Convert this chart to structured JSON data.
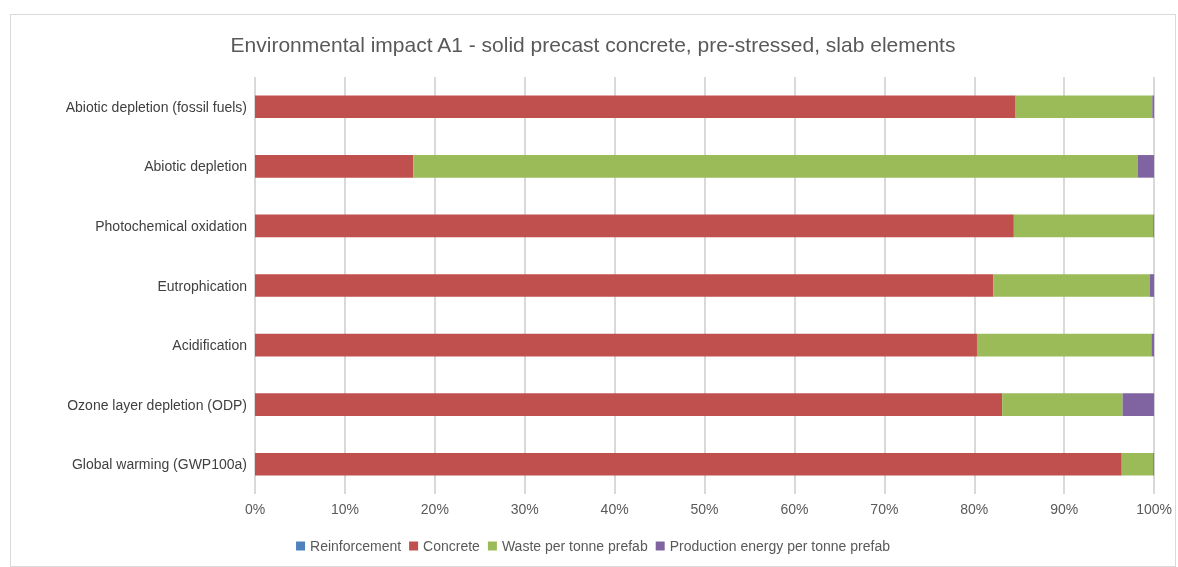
{
  "chart_data": {
    "type": "bar",
    "orientation": "horizontal",
    "stacked": true,
    "title": "Environmental impact A1 - solid precast concrete, pre-stressed, slab elements",
    "categories": [
      "Abiotic depletion (fossil fuels)",
      "Abiotic depletion",
      "Photochemical oxidation",
      "Eutrophication",
      "Acidification",
      "Ozone layer depletion (ODP)",
      "Global warming (GWP100a)"
    ],
    "series": [
      {
        "name": "Reinforcement",
        "color": "#4f81bd",
        "values": [
          0,
          0,
          0,
          0,
          0,
          0,
          0
        ]
      },
      {
        "name": "Concrete",
        "color": "#c0504d",
        "values": [
          84.6,
          17.6,
          84.4,
          82.1,
          80.3,
          83.1,
          96.4
        ]
      },
      {
        "name": "Waste per tonne prefab",
        "color": "#9bbb59",
        "values": [
          15.2,
          80.6,
          15.5,
          17.4,
          19.4,
          13.4,
          3.5
        ]
      },
      {
        "name": "Production energy per tonne prefab",
        "color": "#8064a2",
        "values": [
          0.2,
          1.8,
          0.1,
          0.5,
          0.3,
          3.5,
          0.1
        ]
      }
    ],
    "xlim": [
      0,
      100
    ],
    "xticks": [
      {
        "value": 0,
        "label": "0%"
      },
      {
        "value": 10,
        "label": "10%"
      },
      {
        "value": 20,
        "label": "20%"
      },
      {
        "value": 30,
        "label": "30%"
      },
      {
        "value": 40,
        "label": "40%"
      },
      {
        "value": 50,
        "label": "50%"
      },
      {
        "value": 60,
        "label": "60%"
      },
      {
        "value": 70,
        "label": "70%"
      },
      {
        "value": 80,
        "label": "80%"
      },
      {
        "value": 90,
        "label": "90%"
      },
      {
        "value": 100,
        "label": "100%"
      }
    ],
    "grid": "x",
    "legend": "bottom"
  }
}
